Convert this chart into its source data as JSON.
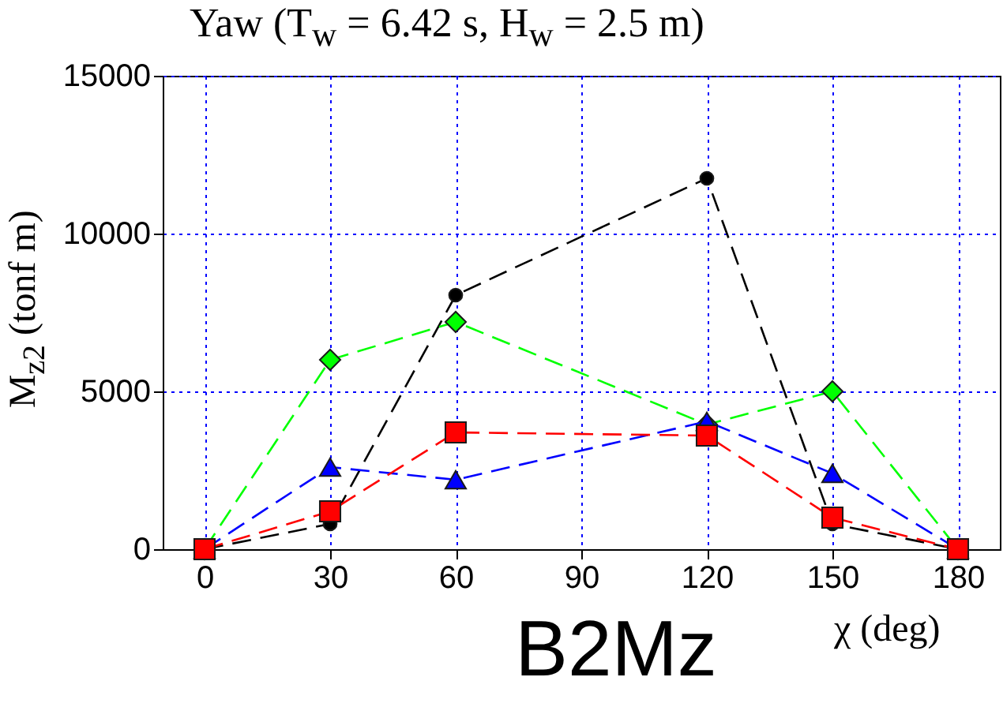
{
  "chart_data": {
    "type": "line",
    "title": "Yaw (T$_{w}$ = 6.42 s, H$_{w}$ = 2.5 m)",
    "xlabel": "χ (deg)",
    "ylabel": "M$_{z2}$ (tonf m)",
    "annotations": [
      "B2Mz"
    ],
    "x": [
      0,
      30,
      60,
      120,
      150,
      180
    ],
    "xlim": [
      -10,
      190
    ],
    "xticks": [
      0,
      30,
      60,
      90,
      120,
      150,
      180
    ],
    "ylim": [
      0,
      15000
    ],
    "yticks": [
      0,
      5000,
      10000,
      15000
    ],
    "grid": true,
    "line_style": "dashed",
    "series": [
      {
        "color": "#000000",
        "marker": "circle",
        "values": [
          0,
          800,
          8050,
          11750,
          800,
          0
        ]
      },
      {
        "color": "#00ff00",
        "marker": "diamond",
        "values": [
          0,
          6000,
          7200,
          3950,
          5000,
          0
        ]
      },
      {
        "color": "#0000ff",
        "marker": "triangle",
        "values": [
          0,
          2600,
          2200,
          4050,
          2400,
          0
        ]
      },
      {
        "color": "#ff0000",
        "marker": "square",
        "values": [
          0,
          1200,
          3700,
          3600,
          1000,
          0
        ]
      }
    ]
  }
}
